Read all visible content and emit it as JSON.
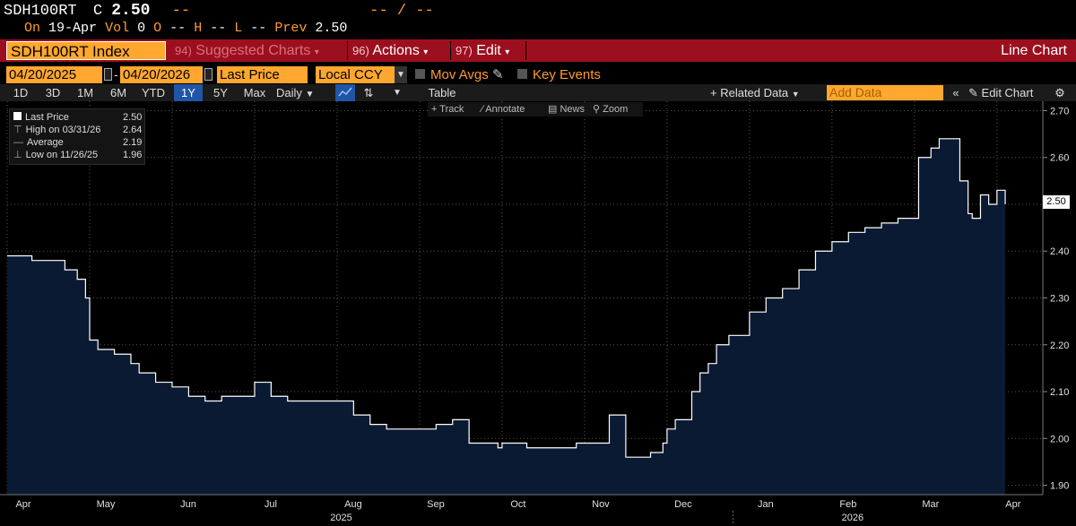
{
  "header": {
    "ticker": "SDH100RT",
    "close_label": "C",
    "close_value": "2.50",
    "close_dash": "--",
    "range_dashes": "-- / --",
    "on_label": "On",
    "on_date": "19-Apr",
    "vol_label": "Vol",
    "vol_value": "0",
    "open_label": "O",
    "open_value": "--",
    "high_label": "H",
    "high_value": "--",
    "low_label": "L",
    "low_value": "--",
    "prev_label": "Prev",
    "prev_value": "2.50"
  },
  "toolbar": {
    "security": "SDH100RT Index",
    "suggested_num": "94)",
    "suggested_label": "Suggested Charts",
    "actions_num": "96)",
    "actions_label": "Actions",
    "edit_num": "97)",
    "edit_label": "Edit",
    "chart_title": "Line Chart"
  },
  "options": {
    "start_date": "04/20/2025",
    "end_date": "04/20/2026",
    "field": "Last Price",
    "currency": "Local CCY",
    "mov_avgs": "Mov Avgs",
    "key_events": "Key Events"
  },
  "periods": {
    "items": [
      "1D",
      "3D",
      "1M",
      "6M",
      "YTD",
      "1Y",
      "5Y",
      "Max"
    ],
    "active": "1Y",
    "frequency": "Daily",
    "table": "Table",
    "related_data": "+ Related Data",
    "add_data_placeholder": "Add Data",
    "edit_chart": "Edit Chart"
  },
  "chart_tools": {
    "track": "Track",
    "annotate": "Annotate",
    "news": "News",
    "zoom": "Zoom"
  },
  "legend": {
    "last_price_label": "Last Price",
    "last_price_value": "2.50",
    "high_label": "High on 03/31/26",
    "high_value": "2.64",
    "average_label": "Average",
    "average_value": "2.19",
    "low_label": "Low on 11/26/25",
    "low_value": "1.96"
  },
  "colors": {
    "accent_orange": "#ffa72e",
    "toolbar_red": "#9b0f1f",
    "area_fill": "#0b1a33",
    "line": "#ffffff"
  },
  "chart_data": {
    "type": "area",
    "title": "SDH100RT Index",
    "frequency": "Daily",
    "ylim": [
      1.88,
      2.72
    ],
    "yticks": [
      "2.70",
      "2.60",
      "2.50",
      "2.40",
      "2.30",
      "2.20",
      "2.10",
      "2.00",
      "1.90"
    ],
    "x_months": [
      "Apr",
      "May",
      "Jun",
      "Jul",
      "Aug",
      "Sep",
      "Oct",
      "Nov",
      "Dec",
      "Jan",
      "Feb",
      "Mar",
      "Apr"
    ],
    "x_years": [
      "2025",
      "2026"
    ],
    "last_value_tag": "2.50",
    "series": [
      {
        "name": "Last Price",
        "x": [
          0.0,
          0.1,
          0.3,
          0.4,
          0.7,
          0.85,
          0.95,
          1.0,
          1.1,
          1.3,
          1.5,
          1.6,
          1.8,
          2.0,
          2.2,
          2.4,
          2.6,
          2.8,
          3.0,
          3.2,
          3.4,
          3.6,
          3.8,
          4.0,
          4.2,
          4.4,
          4.6,
          4.8,
          5.0,
          5.2,
          5.4,
          5.6,
          5.8,
          5.95,
          6.0,
          6.1,
          6.3,
          6.5,
          6.7,
          6.9,
          7.1,
          7.3,
          7.5,
          7.8,
          7.95,
          8.0,
          8.1,
          8.3,
          8.4,
          8.5,
          8.6,
          8.75,
          9.0,
          9.2,
          9.4,
          9.6,
          9.8,
          10.0,
          10.2,
          10.4,
          10.6,
          10.8,
          11.0,
          11.05,
          11.2,
          11.3,
          11.45,
          11.55,
          11.65,
          11.7,
          11.8,
          11.9,
          12.0,
          12.1
        ],
        "values": [
          2.39,
          2.39,
          2.38,
          2.38,
          2.36,
          2.34,
          2.3,
          2.21,
          2.19,
          2.18,
          2.16,
          2.14,
          2.12,
          2.11,
          2.09,
          2.08,
          2.09,
          2.09,
          2.12,
          2.09,
          2.08,
          2.08,
          2.08,
          2.08,
          2.05,
          2.03,
          2.02,
          2.02,
          2.02,
          2.03,
          2.04,
          1.99,
          1.99,
          1.98,
          1.99,
          1.99,
          1.98,
          1.98,
          1.98,
          1.99,
          1.99,
          2.05,
          1.96,
          1.97,
          1.99,
          2.02,
          2.04,
          2.1,
          2.14,
          2.16,
          2.2,
          2.22,
          2.27,
          2.3,
          2.32,
          2.36,
          2.4,
          2.42,
          2.44,
          2.45,
          2.46,
          2.47,
          2.47,
          2.6,
          2.62,
          2.64,
          2.64,
          2.55,
          2.48,
          2.47,
          2.52,
          2.5,
          2.53,
          2.5
        ]
      }
    ],
    "annotations": {
      "high": {
        "label": "High on 03/31/26",
        "value": 2.64
      },
      "low": {
        "label": "Low on 11/26/25",
        "value": 1.96
      },
      "average": {
        "label": "Average",
        "value": 2.19
      }
    }
  }
}
